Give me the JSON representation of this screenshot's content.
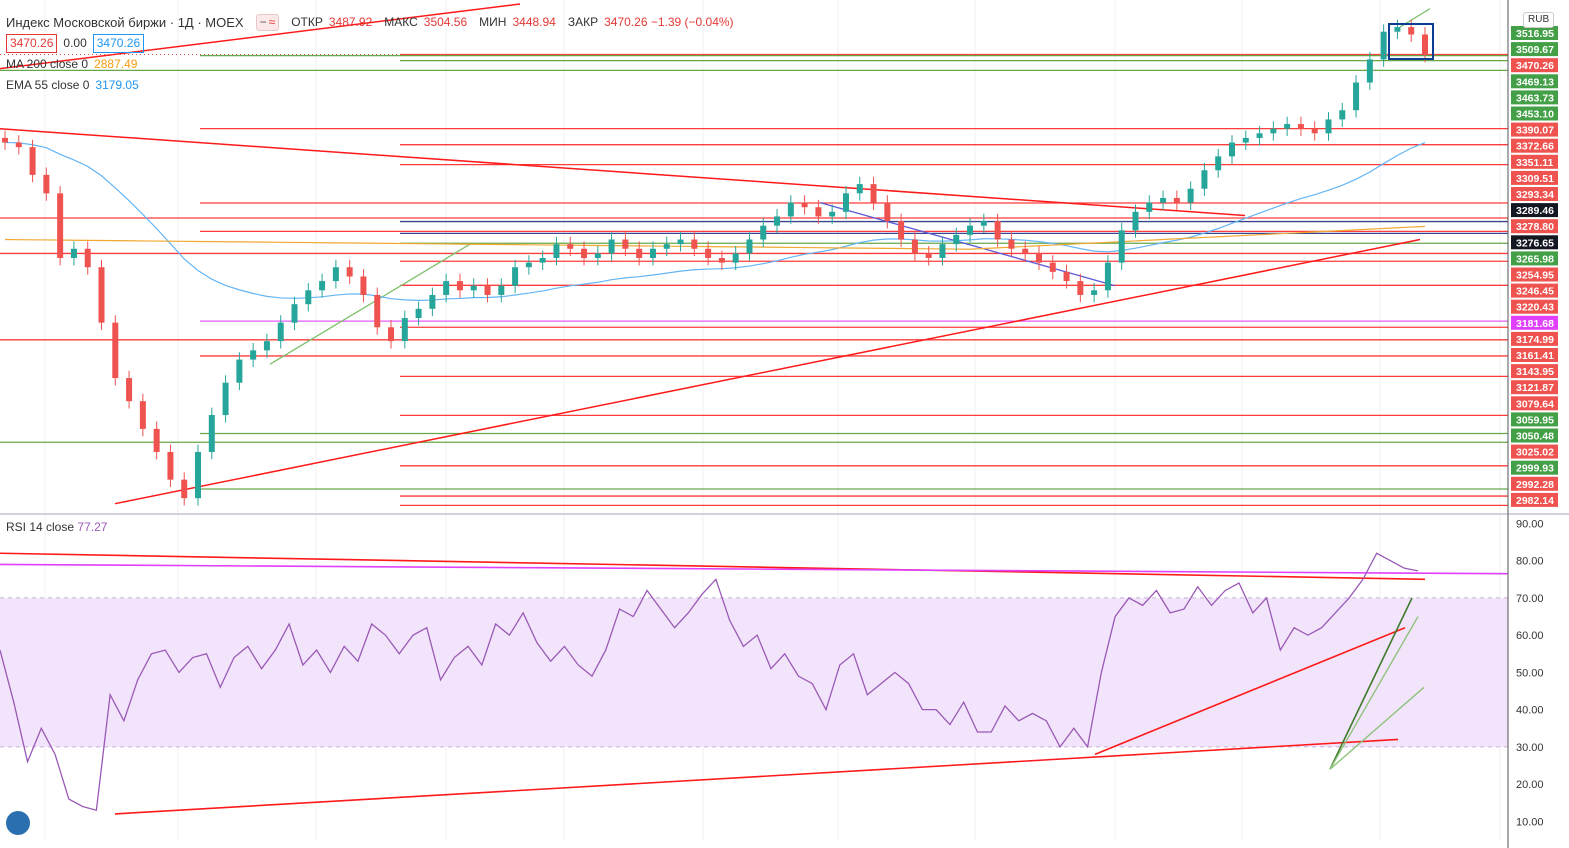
{
  "header": {
    "symbol_title": "Индекс Московской биржи · 1Д · MOEX",
    "mode_icons": [
      "minus-icon",
      "approx-icon"
    ],
    "ohlc": [
      {
        "label": "ОТКР",
        "value": "3487.92"
      },
      {
        "label": "МАКС",
        "value": "3504.56"
      },
      {
        "label": "МИН",
        "value": "3448.94"
      },
      {
        "label": "ЗАКР",
        "value": "3470.26 −1.39 (−0.04%)"
      }
    ],
    "sell_price": "3470.26",
    "spread": "0.00",
    "buy_price": "3470.26",
    "currency": "RUB"
  },
  "indicators": [
    {
      "name": "MA 200 close 0",
      "value": "2887.49",
      "color": "#f39c12"
    },
    {
      "name": "EMA 55 close 0",
      "value": "3179.05",
      "color": "#2196f3"
    }
  ],
  "rsi_legend": {
    "name": "RSI 14 close",
    "value": "77.27"
  },
  "colors": {
    "up": "#26a69a",
    "down": "#ef5350",
    "red_line": "#ff1a1a",
    "green_line": "#4c9a2a",
    "rsi": "#9b59b6",
    "rsi_band": "#f1e4fb",
    "magenta": "#e040fb"
  },
  "chart_data": [
    {
      "type": "candlestick",
      "ylim": [
        2975,
        3525
      ],
      "price_scale_labels": [
        {
          "v": "3516.95",
          "bg": "#43a047"
        },
        {
          "v": "3509.67",
          "bg": "#43a047"
        },
        {
          "v": "3470.26",
          "bg": "#ef5350"
        },
        {
          "v": "3469.13",
          "bg": "#43a047"
        },
        {
          "v": "3463.73",
          "bg": "#43a047"
        },
        {
          "v": "3453.10",
          "bg": "#43a047"
        },
        {
          "v": "3390.07",
          "bg": "#ef5350"
        },
        {
          "v": "3372.66",
          "bg": "#ef5350"
        },
        {
          "v": "3351.11",
          "bg": "#ef5350"
        },
        {
          "v": "3309.51",
          "bg": "#ef5350"
        },
        {
          "v": "3293.34",
          "bg": "#ef5350"
        },
        {
          "v": "3289.46",
          "bg": "#131722"
        },
        {
          "v": "3278.80",
          "bg": "#ef5350"
        },
        {
          "v": "3276.65",
          "bg": "#131722"
        },
        {
          "v": "3265.98",
          "bg": "#43a047"
        },
        {
          "v": "3254.95",
          "bg": "#ef5350"
        },
        {
          "v": "3246.45",
          "bg": "#ef5350"
        },
        {
          "v": "3220.43",
          "bg": "#ef5350"
        },
        {
          "v": "3181.68",
          "bg": "#e040fb"
        },
        {
          "v": "3174.99",
          "bg": "#ef5350"
        },
        {
          "v": "3161.41",
          "bg": "#ef5350"
        },
        {
          "v": "3143.95",
          "bg": "#ef5350"
        },
        {
          "v": "3121.87",
          "bg": "#ef5350"
        },
        {
          "v": "3079.64",
          "bg": "#ef5350"
        },
        {
          "v": "3059.95",
          "bg": "#43a047"
        },
        {
          "v": "3050.48",
          "bg": "#43a047"
        },
        {
          "v": "3025.02",
          "bg": "#ef5350"
        },
        {
          "v": "2999.93",
          "bg": "#43a047"
        },
        {
          "v": "2992.28",
          "bg": "#ef5350"
        },
        {
          "v": "2982.14",
          "bg": "#ef5350"
        }
      ],
      "close_path": [
        3375,
        3370,
        3340,
        3320,
        3250,
        3260,
        3240,
        3180,
        3120,
        3095,
        3065,
        3040,
        3010,
        2990,
        3040,
        3080,
        3115,
        3140,
        3150,
        3160,
        3180,
        3200,
        3215,
        3225,
        3240,
        3230,
        3210,
        3175,
        3160,
        3185,
        3195,
        3210,
        3225,
        3215,
        3220,
        3210,
        3220,
        3240,
        3245,
        3250,
        3265,
        3260,
        3250,
        3255,
        3270,
        3260,
        3250,
        3260,
        3265,
        3270,
        3260,
        3250,
        3245,
        3255,
        3270,
        3285,
        3295,
        3310,
        3305,
        3295,
        3300,
        3320,
        3330,
        3310,
        3290,
        3270,
        3255,
        3250,
        3265,
        3275,
        3285,
        3290,
        3270,
        3260,
        3255,
        3245,
        3235,
        3225,
        3210,
        3215,
        3245,
        3280,
        3300,
        3310,
        3315,
        3310,
        3325,
        3345,
        3360,
        3375,
        3380,
        3385,
        3390,
        3395,
        3390,
        3385,
        3400,
        3410,
        3440,
        3465,
        3495,
        3500,
        3492,
        3470
      ]
    },
    {
      "type": "line",
      "name": "RSI 14 close",
      "ylim": [
        5,
        92
      ],
      "y_ticks": [
        "90.00",
        "80.00",
        "70.00",
        "60.00",
        "50.00",
        "40.00",
        "30.00",
        "20.00",
        "10.00"
      ],
      "band": [
        30,
        70
      ],
      "values": [
        56,
        42,
        26,
        35,
        28,
        16,
        14,
        13,
        44,
        37,
        48,
        55,
        56,
        50,
        54,
        55,
        46,
        54,
        57,
        51,
        56,
        63,
        52,
        56,
        50,
        57,
        53,
        63,
        60,
        55,
        60,
        62,
        48,
        54,
        57,
        52,
        63,
        60,
        66,
        58,
        53,
        57,
        52,
        49,
        56,
        67,
        65,
        72,
        67,
        62,
        66,
        71,
        75,
        64,
        57,
        60,
        51,
        55,
        49,
        47,
        40,
        52,
        55,
        44,
        47,
        50,
        47,
        40,
        40,
        36,
        42,
        34,
        34,
        41,
        37,
        39,
        37,
        30,
        35,
        30,
        50,
        65,
        70,
        68,
        72,
        66,
        67,
        73,
        68,
        72,
        74,
        66,
        70,
        56,
        62,
        60,
        62,
        66,
        70,
        75,
        82,
        80,
        78,
        77.27
      ]
    }
  ]
}
